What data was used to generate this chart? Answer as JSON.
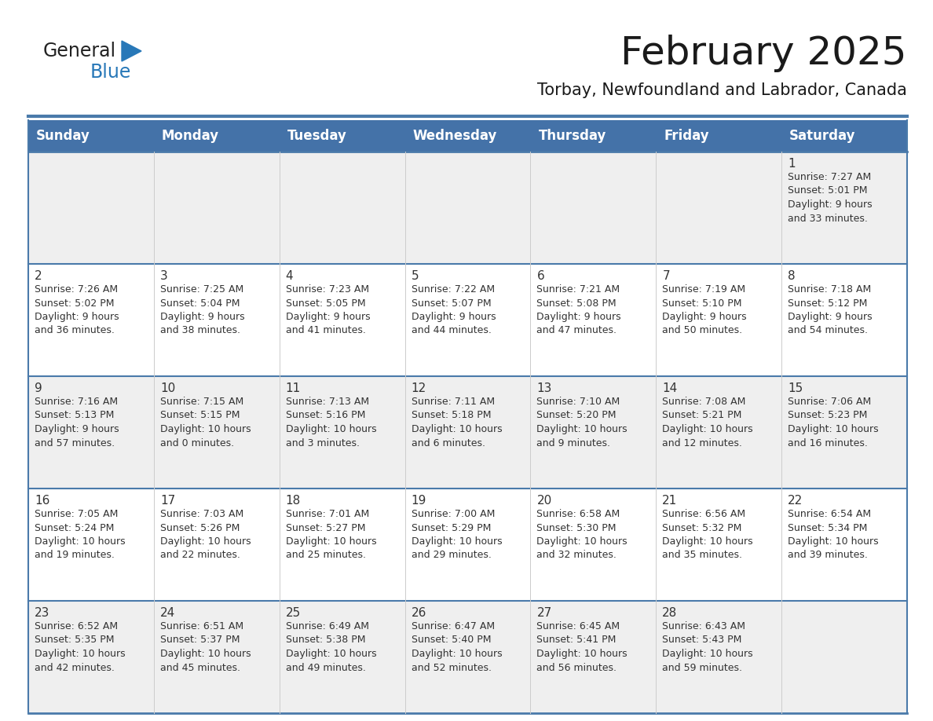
{
  "title": "February 2025",
  "subtitle": "Torbay, Newfoundland and Labrador, Canada",
  "days_of_week": [
    "Sunday",
    "Monday",
    "Tuesday",
    "Wednesday",
    "Thursday",
    "Friday",
    "Saturday"
  ],
  "header_bg": "#4472a8",
  "header_text_color": "#ffffff",
  "cell_bg_odd": "#efefef",
  "cell_bg_even": "#ffffff",
  "separator_color": "#4a7aaa",
  "day_number_color": "#333333",
  "info_text_color": "#333333",
  "title_color": "#1a1a1a",
  "subtitle_color": "#1a1a1a",
  "logo_general_color": "#222222",
  "logo_blue_color": "#2878b8",
  "calendar_data": [
    {
      "day": 1,
      "col": 6,
      "row": 0,
      "sunrise": "7:27 AM",
      "sunset": "5:01 PM",
      "daylight": "9 hours\nand 33 minutes."
    },
    {
      "day": 2,
      "col": 0,
      "row": 1,
      "sunrise": "7:26 AM",
      "sunset": "5:02 PM",
      "daylight": "9 hours\nand 36 minutes."
    },
    {
      "day": 3,
      "col": 1,
      "row": 1,
      "sunrise": "7:25 AM",
      "sunset": "5:04 PM",
      "daylight": "9 hours\nand 38 minutes."
    },
    {
      "day": 4,
      "col": 2,
      "row": 1,
      "sunrise": "7:23 AM",
      "sunset": "5:05 PM",
      "daylight": "9 hours\nand 41 minutes."
    },
    {
      "day": 5,
      "col": 3,
      "row": 1,
      "sunrise": "7:22 AM",
      "sunset": "5:07 PM",
      "daylight": "9 hours\nand 44 minutes."
    },
    {
      "day": 6,
      "col": 4,
      "row": 1,
      "sunrise": "7:21 AM",
      "sunset": "5:08 PM",
      "daylight": "9 hours\nand 47 minutes."
    },
    {
      "day": 7,
      "col": 5,
      "row": 1,
      "sunrise": "7:19 AM",
      "sunset": "5:10 PM",
      "daylight": "9 hours\nand 50 minutes."
    },
    {
      "day": 8,
      "col": 6,
      "row": 1,
      "sunrise": "7:18 AM",
      "sunset": "5:12 PM",
      "daylight": "9 hours\nand 54 minutes."
    },
    {
      "day": 9,
      "col": 0,
      "row": 2,
      "sunrise": "7:16 AM",
      "sunset": "5:13 PM",
      "daylight": "9 hours\nand 57 minutes."
    },
    {
      "day": 10,
      "col": 1,
      "row": 2,
      "sunrise": "7:15 AM",
      "sunset": "5:15 PM",
      "daylight": "10 hours\nand 0 minutes."
    },
    {
      "day": 11,
      "col": 2,
      "row": 2,
      "sunrise": "7:13 AM",
      "sunset": "5:16 PM",
      "daylight": "10 hours\nand 3 minutes."
    },
    {
      "day": 12,
      "col": 3,
      "row": 2,
      "sunrise": "7:11 AM",
      "sunset": "5:18 PM",
      "daylight": "10 hours\nand 6 minutes."
    },
    {
      "day": 13,
      "col": 4,
      "row": 2,
      "sunrise": "7:10 AM",
      "sunset": "5:20 PM",
      "daylight": "10 hours\nand 9 minutes."
    },
    {
      "day": 14,
      "col": 5,
      "row": 2,
      "sunrise": "7:08 AM",
      "sunset": "5:21 PM",
      "daylight": "10 hours\nand 12 minutes."
    },
    {
      "day": 15,
      "col": 6,
      "row": 2,
      "sunrise": "7:06 AM",
      "sunset": "5:23 PM",
      "daylight": "10 hours\nand 16 minutes."
    },
    {
      "day": 16,
      "col": 0,
      "row": 3,
      "sunrise": "7:05 AM",
      "sunset": "5:24 PM",
      "daylight": "10 hours\nand 19 minutes."
    },
    {
      "day": 17,
      "col": 1,
      "row": 3,
      "sunrise": "7:03 AM",
      "sunset": "5:26 PM",
      "daylight": "10 hours\nand 22 minutes."
    },
    {
      "day": 18,
      "col": 2,
      "row": 3,
      "sunrise": "7:01 AM",
      "sunset": "5:27 PM",
      "daylight": "10 hours\nand 25 minutes."
    },
    {
      "day": 19,
      "col": 3,
      "row": 3,
      "sunrise": "7:00 AM",
      "sunset": "5:29 PM",
      "daylight": "10 hours\nand 29 minutes."
    },
    {
      "day": 20,
      "col": 4,
      "row": 3,
      "sunrise": "6:58 AM",
      "sunset": "5:30 PM",
      "daylight": "10 hours\nand 32 minutes."
    },
    {
      "day": 21,
      "col": 5,
      "row": 3,
      "sunrise": "6:56 AM",
      "sunset": "5:32 PM",
      "daylight": "10 hours\nand 35 minutes."
    },
    {
      "day": 22,
      "col": 6,
      "row": 3,
      "sunrise": "6:54 AM",
      "sunset": "5:34 PM",
      "daylight": "10 hours\nand 39 minutes."
    },
    {
      "day": 23,
      "col": 0,
      "row": 4,
      "sunrise": "6:52 AM",
      "sunset": "5:35 PM",
      "daylight": "10 hours\nand 42 minutes."
    },
    {
      "day": 24,
      "col": 1,
      "row": 4,
      "sunrise": "6:51 AM",
      "sunset": "5:37 PM",
      "daylight": "10 hours\nand 45 minutes."
    },
    {
      "day": 25,
      "col": 2,
      "row": 4,
      "sunrise": "6:49 AM",
      "sunset": "5:38 PM",
      "daylight": "10 hours\nand 49 minutes."
    },
    {
      "day": 26,
      "col": 3,
      "row": 4,
      "sunrise": "6:47 AM",
      "sunset": "5:40 PM",
      "daylight": "10 hours\nand 52 minutes."
    },
    {
      "day": 27,
      "col": 4,
      "row": 4,
      "sunrise": "6:45 AM",
      "sunset": "5:41 PM",
      "daylight": "10 hours\nand 56 minutes."
    },
    {
      "day": 28,
      "col": 5,
      "row": 4,
      "sunrise": "6:43 AM",
      "sunset": "5:43 PM",
      "daylight": "10 hours\nand 59 minutes."
    }
  ]
}
